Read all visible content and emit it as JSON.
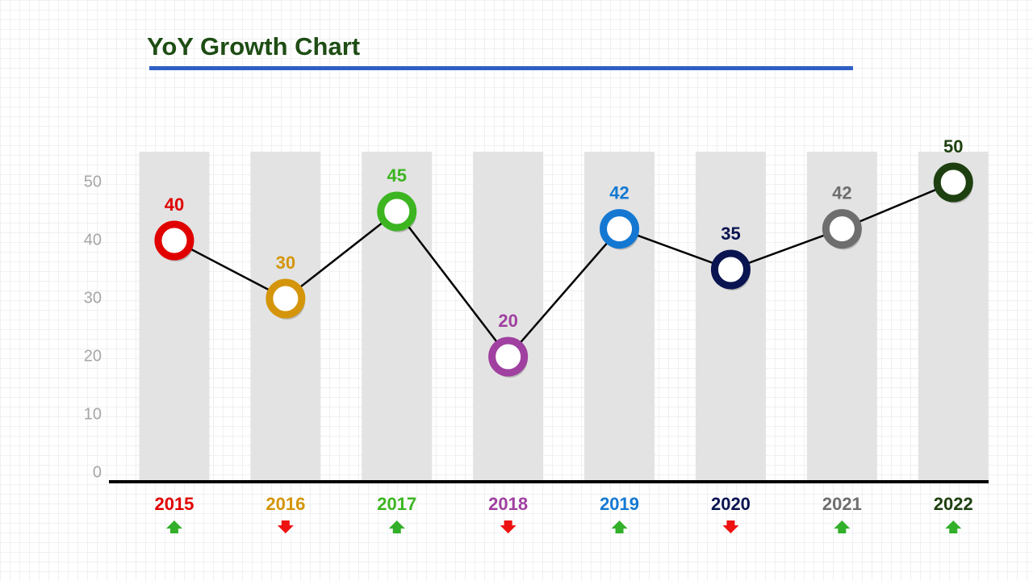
{
  "chart_data": {
    "type": "line",
    "title": "YoY Growth Chart",
    "categories": [
      "2015",
      "2016",
      "2017",
      "2018",
      "2019",
      "2020",
      "2021",
      "2022"
    ],
    "values": [
      40,
      30,
      45,
      20,
      42,
      35,
      42,
      50
    ],
    "point_colors": [
      "#e00000",
      "#d4950a",
      "#3cb521",
      "#a040a0",
      "#1478d2",
      "#0a1450",
      "#6e6e6e",
      "#1e4010"
    ],
    "trend": [
      "up",
      "down",
      "up",
      "down",
      "up",
      "down",
      "up",
      "up"
    ],
    "line_color": "#000000",
    "ylim": [
      0,
      55
    ],
    "yticks": [
      0,
      10,
      20,
      30,
      40,
      50
    ]
  }
}
